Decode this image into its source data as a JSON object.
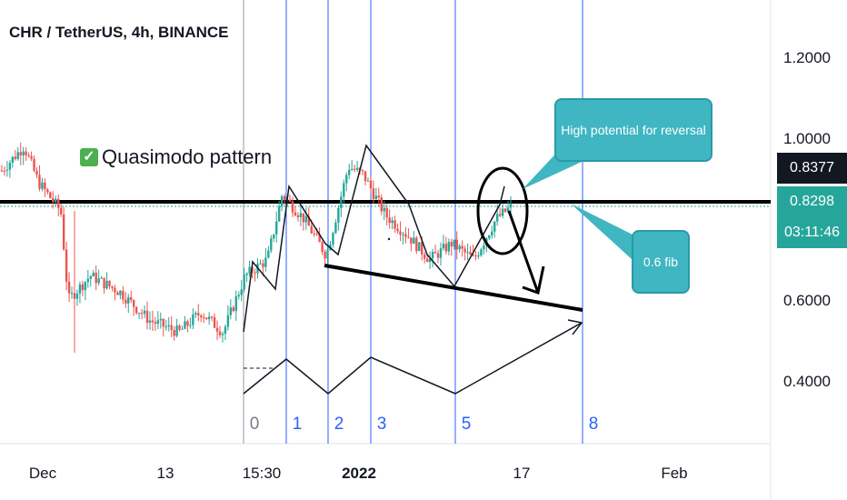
{
  "title": "CHR / TetherUS, 4h, BINANCE",
  "pattern_label": "Quasimodo pattern",
  "callouts": {
    "reversal": "High potential for reversal",
    "fib": "0.6 fib"
  },
  "price_tags": {
    "last_close": "0.8377",
    "current": "0.8298",
    "countdown": "03:11:46"
  },
  "wave_labels": [
    "0",
    "1",
    "2",
    "3",
    "5",
    "8"
  ],
  "colors": {
    "up": "#26a69a",
    "down": "#ef5350",
    "callout": "#3fb6c2",
    "vline": "#2962ff"
  },
  "chart_data": {
    "type": "candlestick",
    "y_ticks": [
      "1.2000",
      "1.0000",
      "0.6000",
      "0.4000"
    ],
    "x_ticks": [
      "Dec",
      "13",
      "15:30",
      "2022",
      "17",
      "Feb"
    ],
    "ylim": [
      0.25,
      1.3
    ],
    "horizontal_level": 0.8377,
    "price_path": [
      {
        "t": 0,
        "p": 0.92
      },
      {
        "t": 0.03,
        "p": 0.98
      },
      {
        "t": 0.05,
        "p": 0.89
      },
      {
        "t": 0.08,
        "p": 0.82
      },
      {
        "t": 0.09,
        "p": 0.6
      },
      {
        "t": 0.12,
        "p": 0.66
      },
      {
        "t": 0.16,
        "p": 0.62
      },
      {
        "t": 0.2,
        "p": 0.55
      },
      {
        "t": 0.24,
        "p": 0.52
      },
      {
        "t": 0.27,
        "p": 0.57
      },
      {
        "t": 0.3,
        "p": 0.52
      },
      {
        "t": 0.33,
        "p": 0.66
      },
      {
        "t": 0.36,
        "p": 0.7
      },
      {
        "t": 0.38,
        "p": 0.86
      },
      {
        "t": 0.41,
        "p": 0.8
      },
      {
        "t": 0.44,
        "p": 0.71
      },
      {
        "t": 0.47,
        "p": 0.93
      },
      {
        "t": 0.49,
        "p": 0.91
      },
      {
        "t": 0.52,
        "p": 0.81
      },
      {
        "t": 0.55,
        "p": 0.76
      },
      {
        "t": 0.58,
        "p": 0.7
      },
      {
        "t": 0.61,
        "p": 0.74
      },
      {
        "t": 0.64,
        "p": 0.7
      },
      {
        "t": 0.67,
        "p": 0.8
      },
      {
        "t": 0.69,
        "p": 0.83
      }
    ]
  }
}
